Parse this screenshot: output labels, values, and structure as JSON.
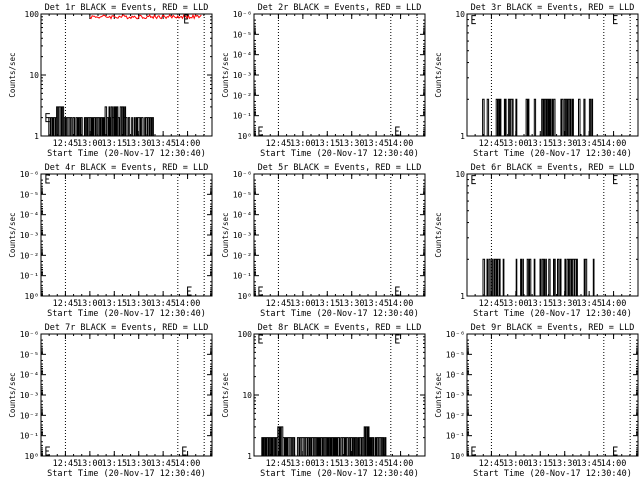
{
  "chart_data": [
    {
      "type": "line",
      "title": "Det 1r BLACK = Events, RED = LLD",
      "xlabel": "Start Time (20-Nov-17 12:30:40)",
      "ylabel": "Counts/sec",
      "yscale": "log",
      "ylim": [
        1,
        100
      ],
      "yticks": [
        {
          "v": 1,
          "l": "1"
        },
        {
          "v": 10,
          "l": "10"
        },
        {
          "v": 100,
          "l": "100"
        }
      ],
      "xlim": [
        12.5,
        14.25
      ],
      "xticks": [
        {
          "v": 12.75,
          "l": "12:45"
        },
        {
          "v": 13.0,
          "l": "13:00"
        },
        {
          "v": 13.25,
          "l": "13:15"
        },
        {
          "v": 13.5,
          "l": "13:30"
        },
        {
          "v": 13.75,
          "l": "13:45"
        },
        {
          "v": 14.0,
          "l": "14:00"
        }
      ],
      "vlines": [
        12.75,
        13.9,
        14.17
      ],
      "e_marks": [
        {
          "x": 12.55,
          "y": 2
        },
        {
          "x": 13.97,
          "y": 100
        }
      ],
      "events": {
        "levels": [
          2,
          3
        ],
        "start": 12.58,
        "end": 13.65,
        "dense_a": [
          12.62,
          12.72
        ],
        "dense_b": [
          13.15,
          13.38
        ],
        "seed": 11
      },
      "lld": {
        "start": 13.0,
        "end": 14.15,
        "y": 95,
        "seed": 4
      }
    },
    {
      "type": "line",
      "title": "Det 2r BLACK = Events, RED = LLD",
      "xlabel": "Start Time (20-Nov-17 12:30:40)",
      "ylabel": "Counts/sec",
      "yscale": "log",
      "ylim": [
        1,
        1e-06
      ],
      "yticks": [
        {
          "v": 1,
          "l": "10⁰"
        },
        {
          "v": 0.1,
          "l": "10⁻¹"
        },
        {
          "v": 0.01,
          "l": "10⁻²"
        },
        {
          "v": 0.001,
          "l": "10⁻³"
        },
        {
          "v": 0.0001,
          "l": "10⁻⁴"
        },
        {
          "v": 1e-05,
          "l": "10⁻⁵"
        },
        {
          "v": 1e-06,
          "l": "10⁻⁶"
        }
      ],
      "xlim": [
        12.5,
        14.25
      ],
      "xticks": [
        {
          "v": 12.75,
          "l": "12:45"
        },
        {
          "v": 13.0,
          "l": "13:00"
        },
        {
          "v": 13.25,
          "l": "13:15"
        },
        {
          "v": 13.5,
          "l": "13:30"
        },
        {
          "v": 13.75,
          "l": "13:45"
        },
        {
          "v": 14.0,
          "l": "14:00"
        }
      ],
      "vlines": [
        12.75,
        13.9,
        14.17
      ],
      "e_marks": [
        {
          "x": 12.55,
          "y": 0.8
        },
        {
          "x": 13.95,
          "y": 0.8
        }
      ]
    },
    {
      "type": "line",
      "title": "Det 3r BLACK = Events, RED = LLD",
      "xlabel": "Start Time (20-Nov-17 12:30:40)",
      "ylabel": "Counts/sec",
      "yscale": "log",
      "ylim": [
        1,
        10
      ],
      "yticks": [
        {
          "v": 1,
          "l": "1"
        },
        {
          "v": 10,
          "l": "10"
        }
      ],
      "xlim": [
        12.5,
        14.25
      ],
      "xticks": [
        {
          "v": 12.75,
          "l": "12:45"
        },
        {
          "v": 13.0,
          "l": "13:00"
        },
        {
          "v": 13.25,
          "l": "13:15"
        },
        {
          "v": 13.5,
          "l": "13:30"
        },
        {
          "v": 13.75,
          "l": "13:45"
        },
        {
          "v": 14.0,
          "l": "14:00"
        }
      ],
      "vlines": [
        12.75,
        13.9,
        14.17
      ],
      "e_marks": [
        {
          "x": 12.55,
          "y": 9
        },
        {
          "x": 14.0,
          "y": 9
        }
      ],
      "events": {
        "levels": [
          1,
          2
        ],
        "start": 12.66,
        "end": 13.85,
        "dense_a": [
          12.78,
          12.98
        ],
        "dense_b": [
          13.42,
          13.58
        ],
        "seed": 23
      }
    },
    {
      "type": "line",
      "title": "Det 4r BLACK = Events, RED = LLD",
      "xlabel": "Start Time (20-Nov-17 12:30:40)",
      "ylabel": "Counts/sec",
      "yscale": "log",
      "ylim": [
        1,
        1e-06
      ],
      "yticks": [
        {
          "v": 1,
          "l": "10⁰"
        },
        {
          "v": 0.1,
          "l": "10⁻¹"
        },
        {
          "v": 0.01,
          "l": "10⁻²"
        },
        {
          "v": 0.001,
          "l": "10⁻³"
        },
        {
          "v": 0.0001,
          "l": "10⁻⁴"
        },
        {
          "v": 1e-05,
          "l": "10⁻⁵"
        },
        {
          "v": 1e-06,
          "l": "10⁻⁶"
        }
      ],
      "xlim": [
        12.5,
        14.25
      ],
      "xticks": [
        {
          "v": 12.75,
          "l": "12:45"
        },
        {
          "v": 13.0,
          "l": "13:00"
        },
        {
          "v": 13.25,
          "l": "13:15"
        },
        {
          "v": 13.5,
          "l": "13:30"
        },
        {
          "v": 13.75,
          "l": "13:45"
        },
        {
          "v": 14.0,
          "l": "14:00"
        }
      ],
      "vlines": [
        12.75,
        13.9,
        14.17
      ],
      "e_marks": [
        {
          "x": 12.55,
          "y": 1e-06
        },
        {
          "x": 14.0,
          "y": 0.8
        }
      ]
    },
    {
      "type": "line",
      "title": "Det 5r BLACK = Events, RED = LLD",
      "xlabel": "Start Time (20-Nov-17 12:30:40)",
      "ylabel": "Counts/sec",
      "yscale": "log",
      "ylim": [
        1,
        1e-06
      ],
      "yticks": [
        {
          "v": 1,
          "l": "10⁰"
        },
        {
          "v": 0.1,
          "l": "10⁻¹"
        },
        {
          "v": 0.01,
          "l": "10⁻²"
        },
        {
          "v": 0.001,
          "l": "10⁻³"
        },
        {
          "v": 0.0001,
          "l": "10⁻⁴"
        },
        {
          "v": 1e-05,
          "l": "10⁻⁵"
        },
        {
          "v": 1e-06,
          "l": "10⁻⁶"
        }
      ],
      "xlim": [
        12.5,
        14.25
      ],
      "xticks": [
        {
          "v": 12.75,
          "l": "12:45"
        },
        {
          "v": 13.0,
          "l": "13:00"
        },
        {
          "v": 13.25,
          "l": "13:15"
        },
        {
          "v": 13.5,
          "l": "13:30"
        },
        {
          "v": 13.75,
          "l": "13:45"
        },
        {
          "v": 14.0,
          "l": "14:00"
        }
      ],
      "vlines": [
        12.75,
        13.9,
        14.17
      ],
      "e_marks": [
        {
          "x": 12.55,
          "y": 0.8
        },
        {
          "x": 13.95,
          "y": 0.8
        }
      ]
    },
    {
      "type": "line",
      "title": "Det 6r BLACK = Events, RED = LLD",
      "xlabel": "Start Time (20-Nov-17 12:30:40)",
      "ylabel": "Counts/sec",
      "yscale": "log",
      "ylim": [
        1,
        10
      ],
      "yticks": [
        {
          "v": 1,
          "l": "1"
        },
        {
          "v": 10,
          "l": "10"
        }
      ],
      "xlim": [
        12.5,
        14.25
      ],
      "xticks": [
        {
          "v": 12.75,
          "l": "12:45"
        },
        {
          "v": 13.0,
          "l": "13:00"
        },
        {
          "v": 13.25,
          "l": "13:15"
        },
        {
          "v": 13.5,
          "l": "13:30"
        },
        {
          "v": 13.75,
          "l": "13:45"
        },
        {
          "v": 14.0,
          "l": "14:00"
        }
      ],
      "vlines": [
        12.75,
        13.9,
        14.17
      ],
      "e_marks": [
        {
          "x": 12.55,
          "y": 9
        },
        {
          "x": 14.0,
          "y": 9
        }
      ],
      "events": {
        "levels": [
          1,
          2
        ],
        "start": 12.6,
        "end": 13.8,
        "dense_a": [
          12.64,
          12.86
        ],
        "dense_b": [
          13.5,
          13.66
        ],
        "seed": 37
      }
    },
    {
      "type": "line",
      "title": "Det 7r BLACK = Events, RED = LLD",
      "xlabel": "Start Time (20-Nov-17 12:30:40)",
      "ylabel": "Counts/sec",
      "yscale": "log",
      "ylim": [
        1,
        1e-06
      ],
      "yticks": [
        {
          "v": 1,
          "l": "10⁰"
        },
        {
          "v": 0.1,
          "l": "10⁻¹"
        },
        {
          "v": 0.01,
          "l": "10⁻²"
        },
        {
          "v": 0.001,
          "l": "10⁻³"
        },
        {
          "v": 0.0001,
          "l": "10⁻⁴"
        },
        {
          "v": 1e-05,
          "l": "10⁻⁵"
        },
        {
          "v": 1e-06,
          "l": "10⁻⁶"
        }
      ],
      "xlim": [
        12.5,
        14.25
      ],
      "xticks": [
        {
          "v": 12.75,
          "l": "12:45"
        },
        {
          "v": 13.0,
          "l": "13:00"
        },
        {
          "v": 13.25,
          "l": "13:15"
        },
        {
          "v": 13.5,
          "l": "13:30"
        },
        {
          "v": 13.75,
          "l": "13:45"
        },
        {
          "v": 14.0,
          "l": "14:00"
        }
      ],
      "vlines": [
        12.75,
        13.9,
        14.17
      ],
      "e_marks": [
        {
          "x": 12.55,
          "y": 0.8
        },
        {
          "x": 13.95,
          "y": 0.8
        }
      ]
    },
    {
      "type": "line",
      "title": "Det 8r BLACK = Events, RED = LLD",
      "xlabel": "Start Time (20-Nov-17 12:30:40)",
      "ylabel": "Counts/sec",
      "yscale": "log",
      "ylim": [
        1,
        100
      ],
      "yticks": [
        {
          "v": 1,
          "l": "1"
        },
        {
          "v": 10,
          "l": "10"
        },
        {
          "v": 100,
          "l": "100"
        }
      ],
      "xlim": [
        12.5,
        14.25
      ],
      "xticks": [
        {
          "v": 12.75,
          "l": "12:45"
        },
        {
          "v": 13.0,
          "l": "13:00"
        },
        {
          "v": 13.25,
          "l": "13:15"
        },
        {
          "v": 13.5,
          "l": "13:30"
        },
        {
          "v": 13.75,
          "l": "13:45"
        },
        {
          "v": 14.0,
          "l": "14:00"
        }
      ],
      "vlines": [
        12.75,
        13.9,
        14.17
      ],
      "e_marks": [
        {
          "x": 12.55,
          "y": 90
        },
        {
          "x": 13.95,
          "y": 90
        }
      ],
      "events": {
        "levels": [
          2,
          3
        ],
        "start": 12.58,
        "end": 13.85,
        "dense_a": [
          12.7,
          12.78
        ],
        "dense_b": [
          13.6,
          13.7
        ],
        "seed": 53
      }
    },
    {
      "type": "line",
      "title": "Det 9r BLACK = Events, RED = LLD",
      "xlabel": "Start Time (20-Nov-17 12:30:40)",
      "ylabel": "Counts/sec",
      "yscale": "log",
      "ylim": [
        1,
        1e-06
      ],
      "yticks": [
        {
          "v": 1,
          "l": "10⁰"
        },
        {
          "v": 0.1,
          "l": "10⁻¹"
        },
        {
          "v": 0.01,
          "l": "10⁻²"
        },
        {
          "v": 0.001,
          "l": "10⁻³"
        },
        {
          "v": 0.0001,
          "l": "10⁻⁴"
        },
        {
          "v": 1e-05,
          "l": "10⁻⁵"
        },
        {
          "v": 1e-06,
          "l": "10⁻⁶"
        }
      ],
      "xlim": [
        12.5,
        14.25
      ],
      "xticks": [
        {
          "v": 12.75,
          "l": "12:45"
        },
        {
          "v": 13.0,
          "l": "13:00"
        },
        {
          "v": 13.25,
          "l": "13:15"
        },
        {
          "v": 13.5,
          "l": "13:30"
        },
        {
          "v": 13.75,
          "l": "13:45"
        },
        {
          "v": 14.0,
          "l": "14:00"
        }
      ],
      "vlines": [
        12.75,
        13.9,
        14.17
      ],
      "e_marks": [
        {
          "x": 12.55,
          "y": 0.8
        },
        {
          "x": 14.0,
          "y": 0.8
        }
      ]
    }
  ],
  "colors": {
    "events": "#000000",
    "lld": "#ff0000",
    "axes": "#000000",
    "background": "#ffffff"
  }
}
